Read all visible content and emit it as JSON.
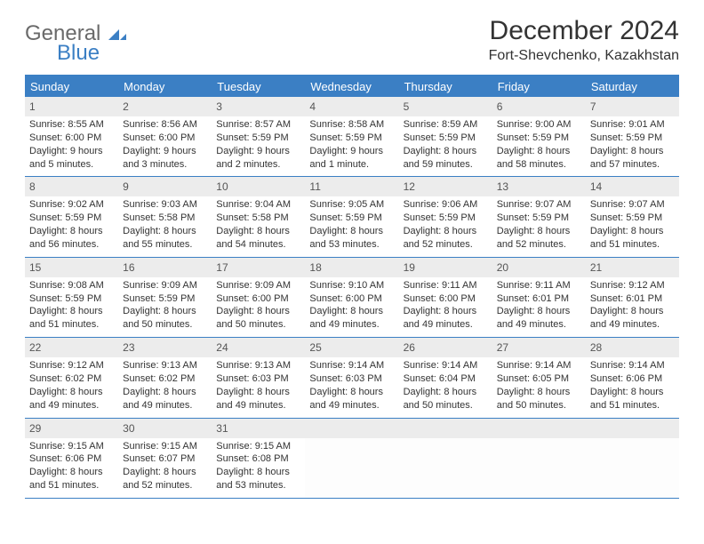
{
  "brand": {
    "word1": "General",
    "word2": "Blue"
  },
  "title": "December 2024",
  "subtitle": "Fort-Shevchenko, Kazakhstan",
  "colors": {
    "accent": "#3b7fc4",
    "headerText": "#ffffff",
    "dayHeaderBg": "#ececec",
    "bodyText": "#333333"
  },
  "weekdays": [
    "Sunday",
    "Monday",
    "Tuesday",
    "Wednesday",
    "Thursday",
    "Friday",
    "Saturday"
  ],
  "weeks": [
    [
      {
        "n": "1",
        "sunrise": "8:55 AM",
        "sunset": "6:00 PM",
        "daylight": "9 hours and 5 minutes."
      },
      {
        "n": "2",
        "sunrise": "8:56 AM",
        "sunset": "6:00 PM",
        "daylight": "9 hours and 3 minutes."
      },
      {
        "n": "3",
        "sunrise": "8:57 AM",
        "sunset": "5:59 PM",
        "daylight": "9 hours and 2 minutes."
      },
      {
        "n": "4",
        "sunrise": "8:58 AM",
        "sunset": "5:59 PM",
        "daylight": "9 hours and 1 minute."
      },
      {
        "n": "5",
        "sunrise": "8:59 AM",
        "sunset": "5:59 PM",
        "daylight": "8 hours and 59 minutes."
      },
      {
        "n": "6",
        "sunrise": "9:00 AM",
        "sunset": "5:59 PM",
        "daylight": "8 hours and 58 minutes."
      },
      {
        "n": "7",
        "sunrise": "9:01 AM",
        "sunset": "5:59 PM",
        "daylight": "8 hours and 57 minutes."
      }
    ],
    [
      {
        "n": "8",
        "sunrise": "9:02 AM",
        "sunset": "5:59 PM",
        "daylight": "8 hours and 56 minutes."
      },
      {
        "n": "9",
        "sunrise": "9:03 AM",
        "sunset": "5:58 PM",
        "daylight": "8 hours and 55 minutes."
      },
      {
        "n": "10",
        "sunrise": "9:04 AM",
        "sunset": "5:58 PM",
        "daylight": "8 hours and 54 minutes."
      },
      {
        "n": "11",
        "sunrise": "9:05 AM",
        "sunset": "5:59 PM",
        "daylight": "8 hours and 53 minutes."
      },
      {
        "n": "12",
        "sunrise": "9:06 AM",
        "sunset": "5:59 PM",
        "daylight": "8 hours and 52 minutes."
      },
      {
        "n": "13",
        "sunrise": "9:07 AM",
        "sunset": "5:59 PM",
        "daylight": "8 hours and 52 minutes."
      },
      {
        "n": "14",
        "sunrise": "9:07 AM",
        "sunset": "5:59 PM",
        "daylight": "8 hours and 51 minutes."
      }
    ],
    [
      {
        "n": "15",
        "sunrise": "9:08 AM",
        "sunset": "5:59 PM",
        "daylight": "8 hours and 51 minutes."
      },
      {
        "n": "16",
        "sunrise": "9:09 AM",
        "sunset": "5:59 PM",
        "daylight": "8 hours and 50 minutes."
      },
      {
        "n": "17",
        "sunrise": "9:09 AM",
        "sunset": "6:00 PM",
        "daylight": "8 hours and 50 minutes."
      },
      {
        "n": "18",
        "sunrise": "9:10 AM",
        "sunset": "6:00 PM",
        "daylight": "8 hours and 49 minutes."
      },
      {
        "n": "19",
        "sunrise": "9:11 AM",
        "sunset": "6:00 PM",
        "daylight": "8 hours and 49 minutes."
      },
      {
        "n": "20",
        "sunrise": "9:11 AM",
        "sunset": "6:01 PM",
        "daylight": "8 hours and 49 minutes."
      },
      {
        "n": "21",
        "sunrise": "9:12 AM",
        "sunset": "6:01 PM",
        "daylight": "8 hours and 49 minutes."
      }
    ],
    [
      {
        "n": "22",
        "sunrise": "9:12 AM",
        "sunset": "6:02 PM",
        "daylight": "8 hours and 49 minutes."
      },
      {
        "n": "23",
        "sunrise": "9:13 AM",
        "sunset": "6:02 PM",
        "daylight": "8 hours and 49 minutes."
      },
      {
        "n": "24",
        "sunrise": "9:13 AM",
        "sunset": "6:03 PM",
        "daylight": "8 hours and 49 minutes."
      },
      {
        "n": "25",
        "sunrise": "9:14 AM",
        "sunset": "6:03 PM",
        "daylight": "8 hours and 49 minutes."
      },
      {
        "n": "26",
        "sunrise": "9:14 AM",
        "sunset": "6:04 PM",
        "daylight": "8 hours and 50 minutes."
      },
      {
        "n": "27",
        "sunrise": "9:14 AM",
        "sunset": "6:05 PM",
        "daylight": "8 hours and 50 minutes."
      },
      {
        "n": "28",
        "sunrise": "9:14 AM",
        "sunset": "6:06 PM",
        "daylight": "8 hours and 51 minutes."
      }
    ],
    [
      {
        "n": "29",
        "sunrise": "9:15 AM",
        "sunset": "6:06 PM",
        "daylight": "8 hours and 51 minutes."
      },
      {
        "n": "30",
        "sunrise": "9:15 AM",
        "sunset": "6:07 PM",
        "daylight": "8 hours and 52 minutes."
      },
      {
        "n": "31",
        "sunrise": "9:15 AM",
        "sunset": "6:08 PM",
        "daylight": "8 hours and 53 minutes."
      },
      null,
      null,
      null,
      null
    ]
  ],
  "labels": {
    "sunrise": "Sunrise:",
    "sunset": "Sunset:",
    "daylight": "Daylight:"
  }
}
